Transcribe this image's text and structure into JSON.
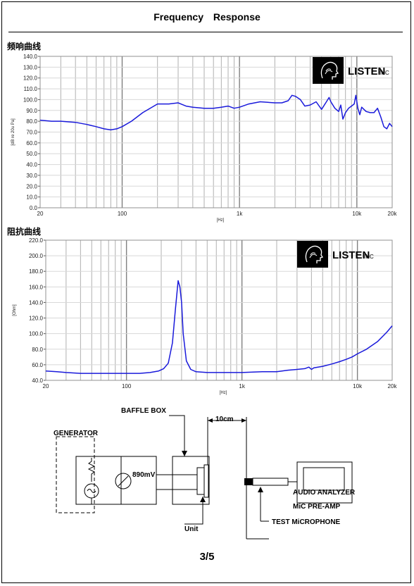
{
  "header": {
    "title": "Frequency Response"
  },
  "colors": {
    "curve": "#1a1adb",
    "grid_major": "#808080",
    "grid_minor": "#b0b0b0",
    "frame": "#909090"
  },
  "logo": {
    "brand": "LISTEN",
    "suffix": "INC"
  },
  "chart_data": [
    {
      "type": "line",
      "section_title": "频响曲线",
      "ylabel": "[dB re 20u Pa]",
      "xlabel": "[Hz]",
      "x_scale": "log",
      "xlim": [
        20,
        20000
      ],
      "ylim": [
        0,
        140
      ],
      "y_ticks": [
        "0.0",
        "10.0",
        "20.0",
        "30.0",
        "40.0",
        "50.0",
        "60.0",
        "70.0",
        "80.0",
        "90.0",
        "100.0",
        "110.0",
        "120.0",
        "130.0",
        "140.0"
      ],
      "x_ticks": [
        {
          "v": 20,
          "label": "20"
        },
        {
          "v": 100,
          "label": "100"
        },
        {
          "v": 1000,
          "label": "1k"
        },
        {
          "v": 10000,
          "label": "10k"
        },
        {
          "v": 20000,
          "label": "20k"
        }
      ],
      "grid": true,
      "series": [
        {
          "x": [
            20,
            25,
            30,
            40,
            50,
            60,
            70,
            80,
            90,
            100,
            120,
            150,
            200,
            250,
            300,
            350,
            400,
            500,
            600,
            700,
            800,
            900,
            1000,
            1200,
            1500,
            2000,
            2300,
            2600,
            2800,
            3000,
            3300,
            3600,
            4000,
            4500,
            5000,
            5500,
            5800,
            6000,
            6500,
            7000,
            7300,
            7600,
            8000,
            8500,
            9000,
            9500,
            9800,
            10200,
            10600,
            11000,
            12000,
            13000,
            14000,
            15000,
            16000,
            17000,
            18000,
            19000,
            20000
          ],
          "y": [
            81,
            80,
            80,
            79,
            77,
            75,
            73,
            72,
            73,
            75,
            80,
            88,
            96,
            96,
            97,
            94,
            93,
            92,
            92,
            93,
            94,
            92,
            93,
            96,
            98,
            97,
            97,
            99,
            104,
            103,
            100,
            94,
            95,
            98,
            91,
            98,
            102,
            98,
            92,
            89,
            95,
            82,
            88,
            92,
            94,
            96,
            104,
            92,
            86,
            93,
            89,
            88,
            88,
            92,
            84,
            75,
            73,
            78,
            75
          ]
        }
      ]
    },
    {
      "type": "line",
      "section_title": "阻抗曲线",
      "ylabel": "[Ohm]",
      "xlabel": "[Hz]",
      "x_scale": "log",
      "xlim": [
        20,
        20000
      ],
      "ylim": [
        40,
        220
      ],
      "y_ticks": [
        "40.0",
        "60.0",
        "80.0",
        "100.0",
        "120.0",
        "140.0",
        "160.0",
        "180.0",
        "200.0",
        "220.0"
      ],
      "x_ticks": [
        {
          "v": 20,
          "label": "20"
        },
        {
          "v": 100,
          "label": "100"
        },
        {
          "v": 1000,
          "label": "1k"
        },
        {
          "v": 10000,
          "label": "10k"
        },
        {
          "v": 20000,
          "label": "20k"
        }
      ],
      "grid": true,
      "series": [
        {
          "x": [
            20,
            25,
            30,
            40,
            50,
            70,
            100,
            130,
            160,
            190,
            210,
            230,
            250,
            265,
            280,
            290,
            300,
            310,
            330,
            360,
            400,
            500,
            700,
            1000,
            1500,
            2000,
            2500,
            3000,
            3500,
            3800,
            4000,
            4200,
            5000,
            6000,
            7000,
            8000,
            9000,
            10000,
            12000,
            15000,
            18000,
            20000
          ],
          "y": [
            52,
            51,
            50,
            49,
            49,
            49,
            49,
            49,
            50,
            52,
            55,
            62,
            88,
            130,
            168,
            160,
            140,
            100,
            65,
            54,
            51,
            50,
            50,
            50,
            51,
            51,
            53,
            54,
            55,
            57,
            54,
            56,
            58,
            61,
            64,
            67,
            70,
            74,
            80,
            90,
            102,
            110
          ]
        }
      ]
    }
  ],
  "diagram": {
    "baffle_box": "BAFFLE BOX",
    "distance": "10cm",
    "generator": "GENERATOR",
    "voltage": "890mV",
    "audio_analyzer": "AUDIO ANALYZER",
    "mic_preamp": "MiC PRE-AMP",
    "test_mic": "TEST MiCROPHONE",
    "unit": "Unit"
  },
  "page_number": "3/5"
}
